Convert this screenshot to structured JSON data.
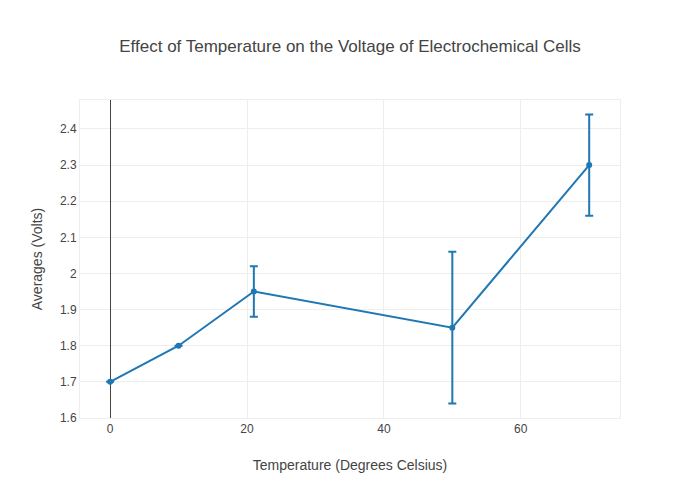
{
  "chart_data": {
    "type": "line",
    "title": "Effect of Temperature on the Voltage of Electrochemical Cells",
    "xlabel": "Temperature (Degrees Celsius)",
    "ylabel": "Averages (Volts)",
    "x": [
      0,
      10,
      21,
      50,
      70
    ],
    "values": [
      1.7,
      1.8,
      1.95,
      1.85,
      2.3
    ],
    "errors": [
      null,
      null,
      0.07,
      0.21,
      0.14
    ],
    "color": "#1f77b4",
    "marker": "circle",
    "line_style": "solid",
    "xlim": [
      -4.4,
      74.5
    ],
    "ylim": [
      1.6,
      2.48
    ],
    "xticks": [
      0,
      20,
      40,
      60
    ],
    "yticks": [
      1.6,
      1.7,
      1.8,
      1.9,
      2,
      2.1,
      2.2,
      2.3,
      2.4
    ],
    "grid": true
  }
}
